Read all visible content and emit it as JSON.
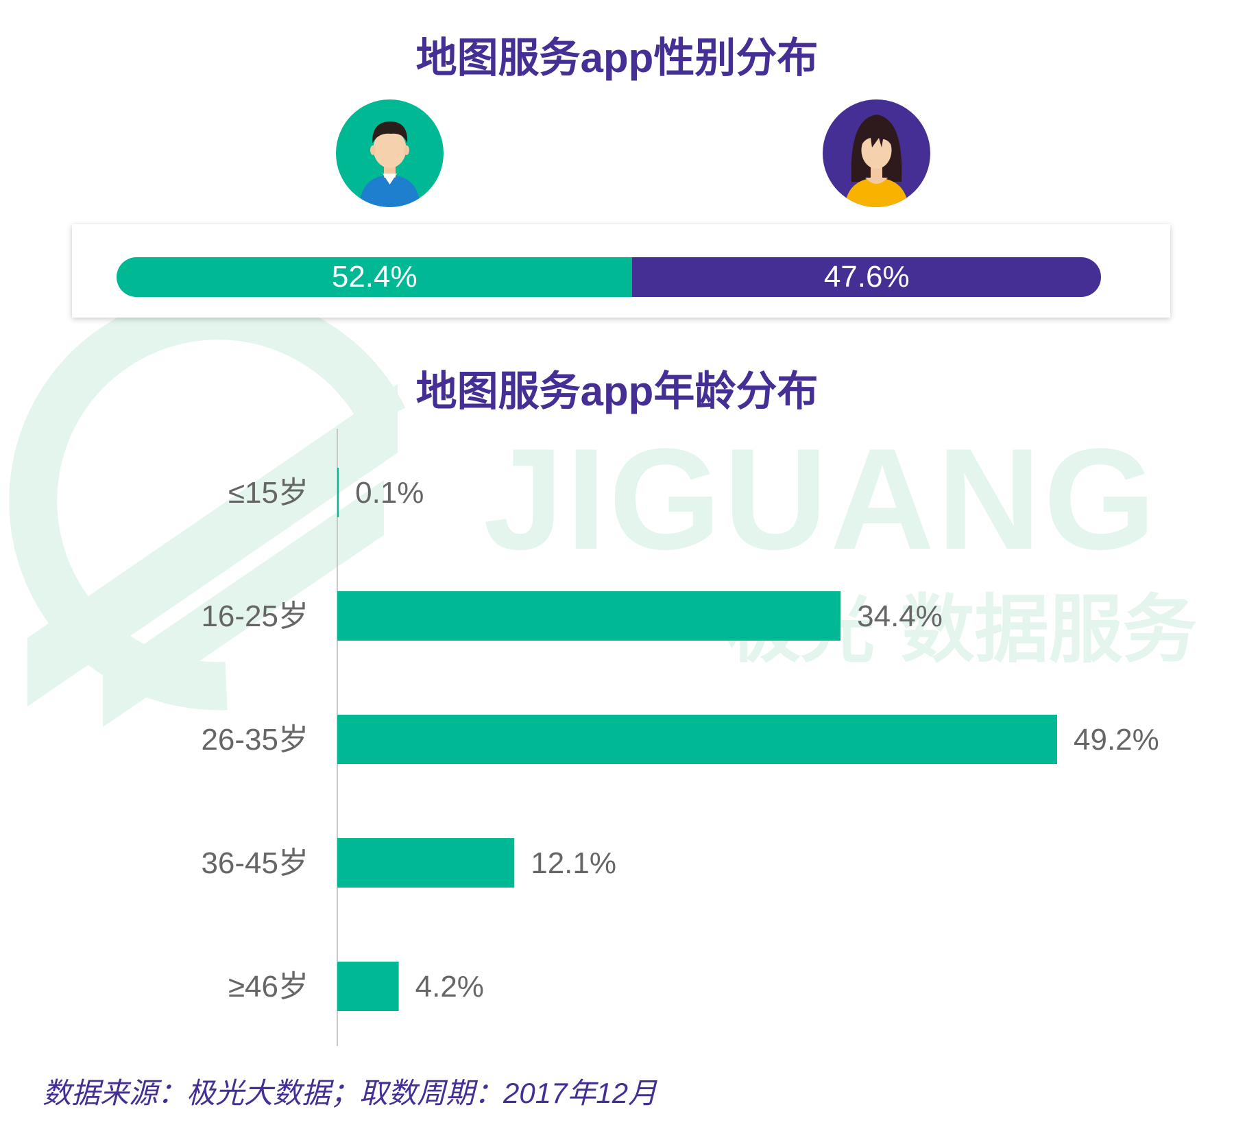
{
  "colors": {
    "title": "#452f94",
    "male": "#00b894",
    "female": "#452f94",
    "bar": "#00b894",
    "label_text": "#666666",
    "watermark": "#e3f5ec"
  },
  "watermark": {
    "brand": "JIGUANG",
    "tagline": "极光 数据服务"
  },
  "gender_title": "地图服务app性别分布",
  "gender": {
    "male": {
      "icon": "male-avatar-icon",
      "value": 52.4,
      "label": "52.4%"
    },
    "female": {
      "icon": "female-avatar-icon",
      "value": 47.6,
      "label": "47.6%"
    }
  },
  "age_title": "地图服务app年龄分布",
  "chart_data": [
    {
      "type": "bar",
      "orientation": "horizontal",
      "title": "地图服务app性别分布",
      "categories": [
        "男",
        "女"
      ],
      "values": [
        52.4,
        47.6
      ],
      "data_labels": [
        "52.4%",
        "47.6%"
      ],
      "xlim": [
        0,
        100
      ]
    },
    {
      "type": "bar",
      "orientation": "horizontal",
      "title": "地图服务app年龄分布",
      "categories": [
        "≤15岁",
        "16-25岁",
        "26-35岁",
        "36-45岁",
        "≥46岁"
      ],
      "values": [
        0.1,
        34.4,
        49.2,
        12.1,
        4.2
      ],
      "data_labels": [
        "0.1%",
        "34.4%",
        "49.2%",
        "12.1%",
        "4.2%"
      ],
      "xlim": [
        0,
        55
      ],
      "grid": false
    }
  ],
  "source": "数据来源：极光大数据；取数周期：2017年12月"
}
